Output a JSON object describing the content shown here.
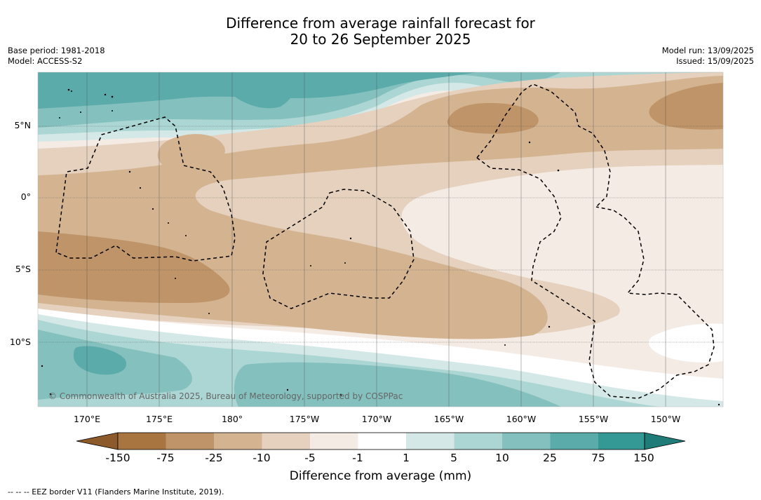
{
  "title": {
    "line1": "Difference from average rainfall forecast for",
    "line2": "20 to 26 September 2025"
  },
  "meta": {
    "base_period": "Base period: 1981-2018",
    "model": "Model: ACCESS-S2",
    "model_run": "Model run: 13/09/2025",
    "issued": "Issued: 15/09/2025"
  },
  "map": {
    "latitude_labels": [
      "5°N",
      "0°",
      "5°S",
      "10°S"
    ],
    "longitude_labels": [
      "170°E",
      "175°E",
      "180°",
      "175°W",
      "170°W",
      "165°W",
      "160°W",
      "155°W",
      "150°W"
    ],
    "copyright": "© Commonwealth of Australia 2025, Bureau of Meteorology, supported by COSPPac",
    "colors": {
      "dry_150": "#a87440",
      "dry_75": "#bf9468",
      "dry_25": "#d4b391",
      "dry_10": "#e5d1bd",
      "dry_5": "#f5ebe5",
      "neutral": "#ffffff",
      "wet_1": "#d4e9e7",
      "wet_5": "#acd6d3",
      "wet_10": "#84c0be",
      "wet_25": "#5aabaa",
      "wet_75": "#349894",
      "eez_border": "#000000"
    }
  },
  "colorbar": {
    "ticks": [
      "-150",
      "-75",
      "-25",
      "-10",
      "-5",
      "-1",
      "1",
      "5",
      "10",
      "25",
      "75",
      "150"
    ],
    "label": "Difference from average (mm)"
  },
  "footnote": "--  --  -- EEZ border V11 (Flanders Marine Institute, 2019)."
}
